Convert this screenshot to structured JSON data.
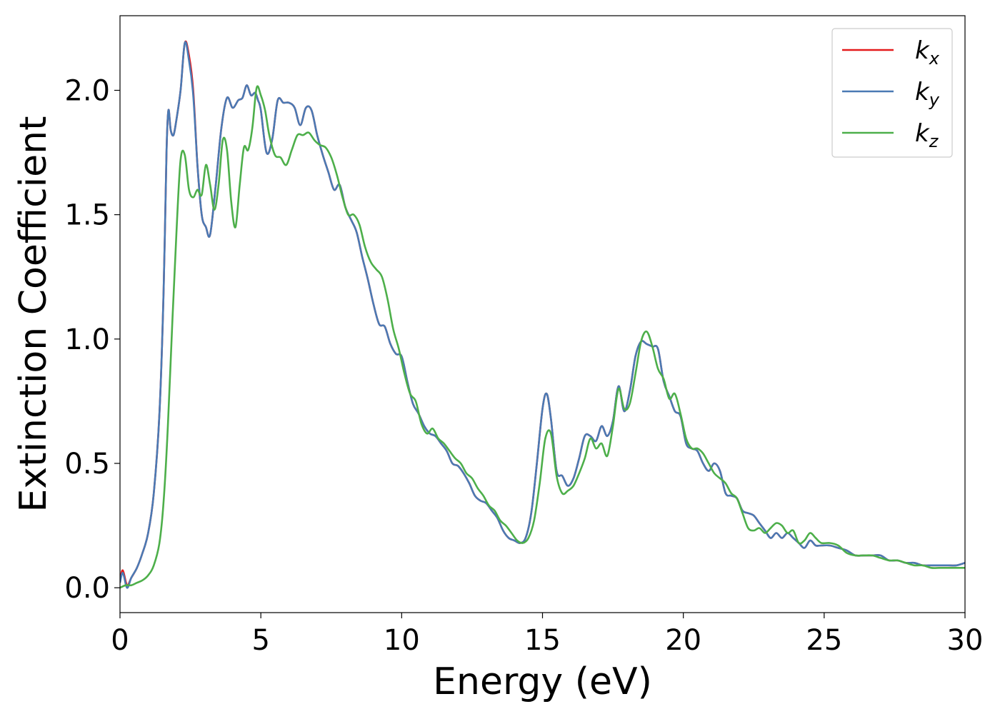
{
  "chart_data": {
    "type": "line",
    "title": "",
    "xlabel": "Energy (eV)",
    "ylabel": "Extinction Coefficient",
    "xlim": [
      0,
      30
    ],
    "ylim": [
      -0.1,
      2.3
    ],
    "xticks": [
      0,
      5,
      10,
      15,
      20,
      25,
      30
    ],
    "xtick_labels": [
      "0",
      "5",
      "10",
      "15",
      "20",
      "25",
      "30"
    ],
    "yticks": [
      0.0,
      0.5,
      1.0,
      1.5,
      2.0
    ],
    "ytick_labels": [
      "0.0",
      "0.5",
      "1.0",
      "1.5",
      "2.0"
    ],
    "grid": false,
    "legend_position": "top-right",
    "series": [
      {
        "name": "k_x",
        "label_base": "k",
        "label_sub": "x",
        "color": "#e41a1c",
        "x": [
          0,
          0.1,
          0.25,
          0.4,
          0.6,
          0.8,
          1.0,
          1.2,
          1.4,
          1.55,
          1.65,
          1.72,
          1.8,
          1.9,
          2.0,
          2.15,
          2.3,
          2.45,
          2.6,
          2.75,
          2.9,
          3.05,
          3.2,
          3.4,
          3.6,
          3.8,
          4.0,
          4.2,
          4.35,
          4.5,
          4.65,
          4.8,
          4.9,
          5.0,
          5.2,
          5.4,
          5.6,
          5.8,
          6.0,
          6.2,
          6.4,
          6.6,
          6.8,
          7.0,
          7.2,
          7.4,
          7.6,
          7.8,
          8.0,
          8.2,
          8.4,
          8.6,
          8.8,
          9.0,
          9.2,
          9.4,
          9.6,
          9.8,
          10.0,
          10.2,
          10.4,
          10.6,
          10.8,
          11.0,
          11.2,
          11.4,
          11.6,
          11.8,
          12.0,
          12.2,
          12.4,
          12.6,
          12.8,
          13.0,
          13.2,
          13.4,
          13.6,
          13.8,
          14.0,
          14.2,
          14.4,
          14.6,
          14.8,
          15.0,
          15.15,
          15.3,
          15.5,
          15.7,
          15.9,
          16.1,
          16.3,
          16.5,
          16.7,
          16.9,
          17.1,
          17.3,
          17.5,
          17.7,
          17.9,
          18.1,
          18.3,
          18.5,
          18.7,
          18.9,
          19.1,
          19.3,
          19.5,
          19.7,
          19.9,
          20.1,
          20.3,
          20.5,
          20.7,
          20.9,
          21.1,
          21.3,
          21.5,
          21.7,
          21.9,
          22.1,
          22.3,
          22.5,
          22.7,
          22.9,
          23.1,
          23.3,
          23.5,
          23.7,
          23.9,
          24.1,
          24.3,
          24.5,
          24.7,
          24.9,
          25.2,
          25.5,
          25.8,
          26.1,
          26.4,
          26.7,
          27.0,
          27.3,
          27.6,
          27.9,
          28.2,
          28.5,
          28.8,
          29.1,
          29.4,
          29.7,
          30.0
        ],
        "y": [
          0.03,
          0.07,
          0.01,
          0.04,
          0.08,
          0.14,
          0.22,
          0.38,
          0.7,
          1.2,
          1.75,
          1.92,
          1.84,
          1.82,
          1.88,
          2.0,
          2.19,
          2.14,
          2.0,
          1.7,
          1.5,
          1.45,
          1.42,
          1.62,
          1.85,
          1.97,
          1.93,
          1.96,
          1.97,
          2.02,
          1.98,
          1.99,
          1.96,
          1.92,
          1.75,
          1.8,
          1.96,
          1.95,
          1.95,
          1.93,
          1.86,
          1.93,
          1.92,
          1.82,
          1.74,
          1.67,
          1.6,
          1.62,
          1.53,
          1.48,
          1.43,
          1.33,
          1.24,
          1.14,
          1.06,
          1.05,
          0.98,
          0.94,
          0.93,
          0.83,
          0.74,
          0.7,
          0.65,
          0.62,
          0.61,
          0.58,
          0.55,
          0.5,
          0.49,
          0.46,
          0.42,
          0.37,
          0.35,
          0.34,
          0.31,
          0.28,
          0.23,
          0.2,
          0.19,
          0.18,
          0.2,
          0.3,
          0.5,
          0.72,
          0.78,
          0.68,
          0.47,
          0.45,
          0.41,
          0.44,
          0.52,
          0.61,
          0.61,
          0.59,
          0.65,
          0.61,
          0.67,
          0.81,
          0.71,
          0.79,
          0.93,
          0.99,
          0.98,
          0.97,
          0.96,
          0.83,
          0.77,
          0.71,
          0.69,
          0.58,
          0.56,
          0.55,
          0.5,
          0.47,
          0.5,
          0.47,
          0.38,
          0.37,
          0.36,
          0.31,
          0.3,
          0.29,
          0.26,
          0.23,
          0.2,
          0.22,
          0.2,
          0.22,
          0.2,
          0.18,
          0.16,
          0.19,
          0.17,
          0.17,
          0.17,
          0.16,
          0.15,
          0.13,
          0.13,
          0.13,
          0.13,
          0.11,
          0.11,
          0.1,
          0.1,
          0.09,
          0.09,
          0.09,
          0.09,
          0.09,
          0.1
        ]
      },
      {
        "name": "k_y",
        "label_base": "k",
        "label_sub": "y",
        "color": "#4a7ab4",
        "x": [
          0,
          0.1,
          0.25,
          0.4,
          0.6,
          0.8,
          1.0,
          1.2,
          1.4,
          1.55,
          1.65,
          1.72,
          1.8,
          1.9,
          2.0,
          2.15,
          2.3,
          2.45,
          2.6,
          2.75,
          2.9,
          3.05,
          3.2,
          3.4,
          3.6,
          3.8,
          4.0,
          4.2,
          4.35,
          4.5,
          4.65,
          4.8,
          4.9,
          5.0,
          5.2,
          5.4,
          5.6,
          5.8,
          6.0,
          6.2,
          6.4,
          6.6,
          6.8,
          7.0,
          7.2,
          7.4,
          7.6,
          7.8,
          8.0,
          8.2,
          8.4,
          8.6,
          8.8,
          9.0,
          9.2,
          9.4,
          9.6,
          9.8,
          10.0,
          10.2,
          10.4,
          10.6,
          10.8,
          11.0,
          11.2,
          11.4,
          11.6,
          11.8,
          12.0,
          12.2,
          12.4,
          12.6,
          12.8,
          13.0,
          13.2,
          13.4,
          13.6,
          13.8,
          14.0,
          14.2,
          14.4,
          14.6,
          14.8,
          15.0,
          15.15,
          15.3,
          15.5,
          15.7,
          15.9,
          16.1,
          16.3,
          16.5,
          16.7,
          16.9,
          17.1,
          17.3,
          17.5,
          17.7,
          17.9,
          18.1,
          18.3,
          18.5,
          18.7,
          18.9,
          19.1,
          19.3,
          19.5,
          19.7,
          19.9,
          20.1,
          20.3,
          20.5,
          20.7,
          20.9,
          21.1,
          21.3,
          21.5,
          21.7,
          21.9,
          22.1,
          22.3,
          22.5,
          22.7,
          22.9,
          23.1,
          23.3,
          23.5,
          23.7,
          23.9,
          24.1,
          24.3,
          24.5,
          24.7,
          24.9,
          25.2,
          25.5,
          25.8,
          26.1,
          26.4,
          26.7,
          27.0,
          27.3,
          27.6,
          27.9,
          28.2,
          28.5,
          28.8,
          29.1,
          29.4,
          29.7,
          30.0
        ],
        "y": [
          0.02,
          0.06,
          0.0,
          0.04,
          0.08,
          0.14,
          0.22,
          0.38,
          0.7,
          1.2,
          1.75,
          1.92,
          1.84,
          1.82,
          1.88,
          2.0,
          2.19,
          2.12,
          1.98,
          1.7,
          1.5,
          1.45,
          1.42,
          1.62,
          1.85,
          1.97,
          1.93,
          1.96,
          1.97,
          2.02,
          1.98,
          1.99,
          1.96,
          1.92,
          1.75,
          1.8,
          1.96,
          1.95,
          1.95,
          1.93,
          1.86,
          1.93,
          1.92,
          1.82,
          1.74,
          1.67,
          1.6,
          1.62,
          1.53,
          1.48,
          1.43,
          1.33,
          1.24,
          1.14,
          1.06,
          1.05,
          0.98,
          0.94,
          0.93,
          0.83,
          0.74,
          0.7,
          0.65,
          0.62,
          0.61,
          0.58,
          0.55,
          0.5,
          0.49,
          0.46,
          0.42,
          0.37,
          0.35,
          0.34,
          0.31,
          0.28,
          0.23,
          0.2,
          0.19,
          0.18,
          0.2,
          0.3,
          0.5,
          0.72,
          0.78,
          0.68,
          0.47,
          0.45,
          0.41,
          0.44,
          0.52,
          0.61,
          0.61,
          0.59,
          0.65,
          0.61,
          0.67,
          0.81,
          0.71,
          0.79,
          0.93,
          0.99,
          0.98,
          0.97,
          0.96,
          0.83,
          0.77,
          0.71,
          0.69,
          0.58,
          0.56,
          0.55,
          0.5,
          0.47,
          0.5,
          0.47,
          0.38,
          0.37,
          0.36,
          0.31,
          0.3,
          0.29,
          0.26,
          0.23,
          0.2,
          0.22,
          0.2,
          0.22,
          0.2,
          0.18,
          0.16,
          0.19,
          0.17,
          0.17,
          0.17,
          0.16,
          0.15,
          0.13,
          0.13,
          0.13,
          0.13,
          0.11,
          0.11,
          0.1,
          0.1,
          0.09,
          0.09,
          0.09,
          0.09,
          0.09,
          0.1
        ]
      },
      {
        "name": "k_z",
        "label_base": "k",
        "label_sub": "z",
        "color": "#4daf4a",
        "x": [
          0,
          0.2,
          0.4,
          0.6,
          0.8,
          1.0,
          1.2,
          1.4,
          1.55,
          1.7,
          1.85,
          2.0,
          2.15,
          2.3,
          2.45,
          2.6,
          2.75,
          2.9,
          3.05,
          3.2,
          3.35,
          3.5,
          3.65,
          3.8,
          3.95,
          4.1,
          4.25,
          4.4,
          4.55,
          4.7,
          4.85,
          5.0,
          5.15,
          5.3,
          5.5,
          5.7,
          5.9,
          6.1,
          6.3,
          6.5,
          6.7,
          6.9,
          7.1,
          7.3,
          7.5,
          7.7,
          7.9,
          8.1,
          8.3,
          8.5,
          8.7,
          8.9,
          9.1,
          9.3,
          9.5,
          9.7,
          9.9,
          10.1,
          10.3,
          10.5,
          10.7,
          10.9,
          11.1,
          11.3,
          11.5,
          11.7,
          11.9,
          12.1,
          12.3,
          12.5,
          12.7,
          12.9,
          13.1,
          13.3,
          13.5,
          13.7,
          13.9,
          14.1,
          14.3,
          14.5,
          14.7,
          14.9,
          15.1,
          15.3,
          15.5,
          15.7,
          15.9,
          16.1,
          16.3,
          16.5,
          16.7,
          16.9,
          17.1,
          17.3,
          17.5,
          17.7,
          17.9,
          18.1,
          18.3,
          18.5,
          18.7,
          18.9,
          19.1,
          19.3,
          19.5,
          19.7,
          19.9,
          20.1,
          20.3,
          20.5,
          20.7,
          20.9,
          21.1,
          21.3,
          21.5,
          21.7,
          21.9,
          22.1,
          22.3,
          22.5,
          22.7,
          22.9,
          23.1,
          23.3,
          23.5,
          23.7,
          23.9,
          24.1,
          24.3,
          24.5,
          24.7,
          24.9,
          25.2,
          25.5,
          25.8,
          26.1,
          26.4,
          26.7,
          27.0,
          27.3,
          27.6,
          27.9,
          28.2,
          28.5,
          28.8,
          29.1,
          29.4,
          29.7,
          30.0
        ],
        "y": [
          0.0,
          0.01,
          0.01,
          0.02,
          0.03,
          0.05,
          0.09,
          0.18,
          0.35,
          0.65,
          1.05,
          1.42,
          1.72,
          1.74,
          1.6,
          1.57,
          1.6,
          1.58,
          1.7,
          1.62,
          1.52,
          1.62,
          1.8,
          1.76,
          1.55,
          1.45,
          1.62,
          1.77,
          1.76,
          1.85,
          2.01,
          1.98,
          1.92,
          1.82,
          1.74,
          1.73,
          1.7,
          1.76,
          1.82,
          1.82,
          1.83,
          1.8,
          1.78,
          1.77,
          1.73,
          1.66,
          1.57,
          1.5,
          1.5,
          1.46,
          1.37,
          1.31,
          1.28,
          1.25,
          1.16,
          1.04,
          0.96,
          0.86,
          0.78,
          0.75,
          0.66,
          0.62,
          0.64,
          0.6,
          0.58,
          0.55,
          0.52,
          0.5,
          0.46,
          0.44,
          0.4,
          0.37,
          0.33,
          0.31,
          0.27,
          0.25,
          0.22,
          0.19,
          0.18,
          0.2,
          0.27,
          0.42,
          0.6,
          0.62,
          0.45,
          0.38,
          0.39,
          0.41,
          0.46,
          0.52,
          0.6,
          0.56,
          0.58,
          0.53,
          0.65,
          0.8,
          0.72,
          0.74,
          0.86,
          0.99,
          1.03,
          0.97,
          0.88,
          0.84,
          0.76,
          0.78,
          0.7,
          0.6,
          0.56,
          0.56,
          0.54,
          0.5,
          0.46,
          0.44,
          0.42,
          0.38,
          0.36,
          0.3,
          0.24,
          0.23,
          0.24,
          0.22,
          0.24,
          0.26,
          0.25,
          0.22,
          0.23,
          0.18,
          0.19,
          0.22,
          0.2,
          0.18,
          0.18,
          0.17,
          0.14,
          0.13,
          0.13,
          0.13,
          0.12,
          0.11,
          0.11,
          0.1,
          0.09,
          0.09,
          0.08,
          0.08,
          0.08,
          0.08,
          0.08
        ]
      }
    ]
  }
}
